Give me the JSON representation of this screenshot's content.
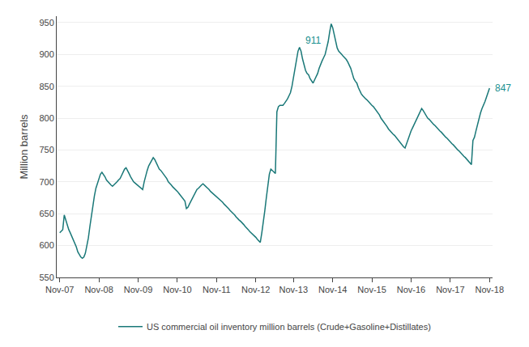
{
  "chart_data": {
    "type": "line",
    "title": "",
    "ylabel": "Million barrels",
    "categories": [
      "Nov-07",
      null,
      null,
      null,
      null,
      null,
      null,
      null,
      null,
      null,
      null,
      null,
      null,
      null,
      null,
      null,
      null,
      null,
      null,
      null,
      null,
      null,
      null,
      null,
      null,
      null,
      "Nov-08",
      null,
      null,
      null,
      null,
      null,
      null,
      null,
      null,
      null,
      null,
      null,
      null,
      null,
      null,
      null,
      null,
      null,
      null,
      null,
      null,
      null,
      null,
      null,
      null,
      null,
      "Nov-09",
      null,
      null,
      null,
      null,
      null,
      null,
      null,
      null,
      null,
      null,
      null,
      null,
      null,
      null,
      null,
      null,
      null,
      null,
      null,
      null,
      null,
      null,
      null,
      null,
      null,
      "Nov-10",
      null,
      null,
      null,
      null,
      null,
      null,
      null,
      null,
      null,
      null,
      null,
      null,
      null,
      null,
      null,
      null,
      null,
      null,
      null,
      null,
      null,
      null,
      null,
      null,
      null,
      "Nov-11",
      null,
      null,
      null,
      null,
      null,
      null,
      null,
      null,
      null,
      null,
      null,
      null,
      null,
      null,
      null,
      null,
      null,
      null,
      null,
      null,
      null,
      null,
      null,
      null,
      null,
      "Nov-12",
      null,
      null,
      null,
      null,
      null,
      null,
      null,
      null,
      null,
      null,
      null,
      null,
      null,
      null,
      null,
      null,
      null,
      null,
      null,
      null,
      null,
      null,
      null,
      null,
      "Nov-13",
      null,
      null,
      null,
      null,
      null,
      null,
      null,
      null,
      null,
      null,
      null,
      null,
      null,
      null,
      null,
      null,
      null,
      null,
      null,
      null,
      null,
      null,
      null,
      null,
      null,
      "Nov-14",
      null,
      null,
      null,
      null,
      null,
      null,
      null,
      null,
      null,
      null,
      null,
      null,
      null,
      null,
      null,
      null,
      null,
      null,
      null,
      null,
      null,
      null,
      null,
      null,
      null,
      "Nov-15",
      null,
      null,
      null,
      null,
      null,
      null,
      null,
      null,
      null,
      null,
      null,
      null,
      null,
      null,
      null,
      null,
      null,
      null,
      null,
      null,
      null,
      null,
      null,
      null,
      null,
      "Nov-16",
      null,
      null,
      null,
      null,
      null,
      null,
      null,
      null,
      null,
      null,
      null,
      null,
      null,
      null,
      null,
      null,
      null,
      null,
      null,
      null,
      null,
      null,
      null,
      null,
      null,
      "Nov-17",
      null,
      null,
      null,
      null,
      null,
      null,
      null,
      null,
      null,
      null,
      null,
      null,
      null,
      null,
      null,
      null,
      null,
      null,
      null,
      null,
      null,
      null,
      null,
      null,
      null,
      "Nov-18"
    ],
    "series": [
      {
        "name": "US commercial oil inventory million barrels (Crude+Gasoline+Distillates)",
        "color": "#1a7878",
        "values": [
          620,
          622,
          625,
          648,
          640,
          632,
          625,
          620,
          615,
          610,
          605,
          598,
          590,
          585,
          582,
          580,
          582,
          588,
          598,
          612,
          630,
          648,
          665,
          678,
          690,
          698,
          705,
          712,
          715,
          712,
          708,
          703,
          700,
          698,
          695,
          693,
          695,
          698,
          700,
          703,
          705,
          710,
          715,
          720,
          722,
          718,
          713,
          708,
          703,
          700,
          698,
          696,
          694,
          692,
          690,
          688,
          700,
          710,
          718,
          725,
          730,
          735,
          738,
          735,
          730,
          725,
          720,
          718,
          715,
          712,
          708,
          705,
          700,
          698,
          695,
          692,
          690,
          688,
          685,
          682,
          679,
          676,
          673,
          670,
          658,
          660,
          665,
          670,
          675,
          680,
          685,
          688,
          690,
          693,
          695,
          697,
          695,
          692,
          690,
          688,
          685,
          683,
          680,
          678,
          677,
          675,
          673,
          670,
          668,
          665,
          663,
          660,
          658,
          655,
          653,
          650,
          648,
          645,
          642,
          640,
          638,
          636,
          633,
          630,
          628,
          625,
          622,
          620,
          618,
          615,
          613,
          610,
          608,
          605,
          620,
          635,
          655,
          675,
          695,
          712,
          720,
          718,
          715,
          713,
          810,
          818,
          820,
          820,
          820,
          823,
          826,
          830,
          835,
          840,
          850,
          865,
          880,
          895,
          905,
          911,
          905,
          893,
          882,
          875,
          870,
          868,
          862,
          858,
          855,
          860,
          865,
          870,
          878,
          885,
          890,
          895,
          900,
          910,
          920,
          935,
          948,
          942,
          932,
          920,
          910,
          905,
          903,
          900,
          897,
          895,
          892,
          888,
          883,
          878,
          870,
          862,
          858,
          855,
          848,
          842,
          838,
          835,
          832,
          830,
          828,
          825,
          822,
          820,
          818,
          815,
          812,
          808,
          805,
          800,
          797,
          793,
          790,
          787,
          783,
          780,
          778,
          775,
          773,
          770,
          767,
          763,
          760,
          758,
          755,
          753,
          760,
          768,
          775,
          780,
          785,
          790,
          795,
          800,
          807,
          812,
          815,
          812,
          808,
          805,
          800,
          798,
          795,
          793,
          790,
          788,
          785,
          783,
          780,
          778,
          775,
          773,
          770,
          768,
          765,
          763,
          760,
          758,
          755,
          753,
          750,
          748,
          745,
          743,
          740,
          738,
          735,
          732,
          730,
          727,
          765,
          770,
          780,
          790,
          800,
          808,
          815,
          820,
          826,
          833,
          840,
          847
        ]
      }
    ],
    "annotations": [
      {
        "text": "911",
        "x": 159,
        "y": 911,
        "color": "#1a9090"
      },
      {
        "text": "847",
        "x": 285,
        "y": 847,
        "color": "#1a9090"
      }
    ],
    "ylim": [
      550,
      960
    ],
    "yticks": [
      550,
      600,
      650,
      700,
      750,
      800,
      850,
      900,
      950
    ],
    "grid": true,
    "legend": "bottom"
  }
}
